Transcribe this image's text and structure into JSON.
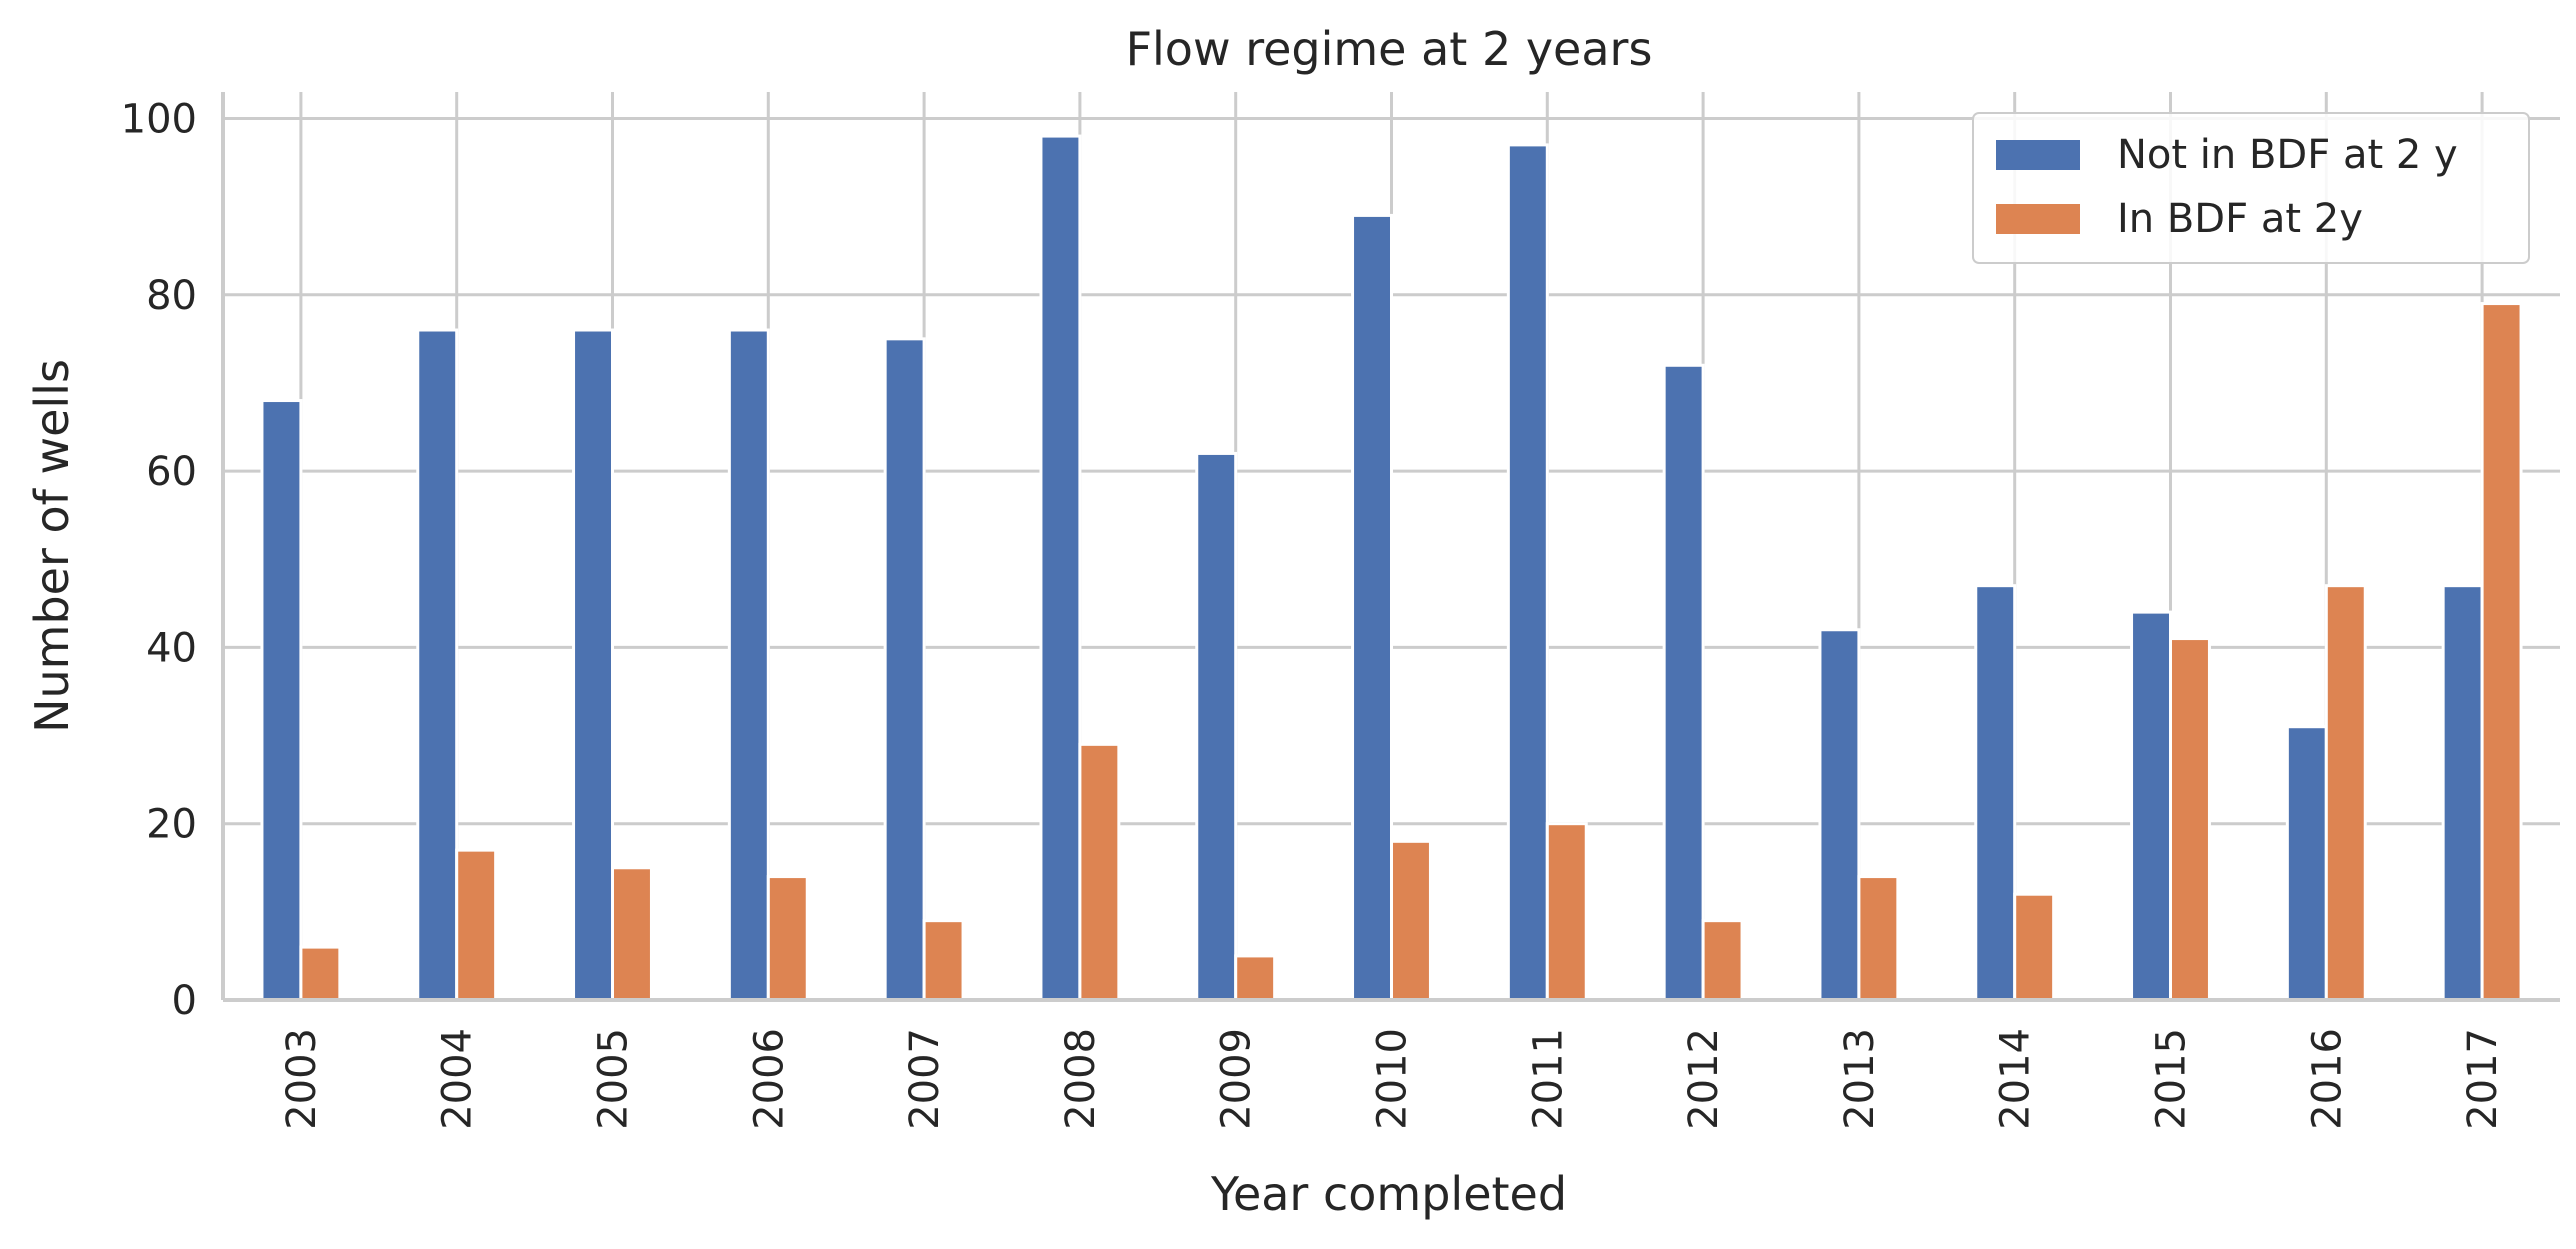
{
  "chart_data": {
    "type": "bar",
    "title": "Flow regime at 2 years",
    "xlabel": "Year completed",
    "ylabel": "Number of wells",
    "categories": [
      "2003",
      "2004",
      "2005",
      "2006",
      "2007",
      "2008",
      "2009",
      "2010",
      "2011",
      "2012",
      "2013",
      "2014",
      "2015",
      "2016",
      "2017"
    ],
    "series": [
      {
        "name": "Not in BDF at 2 y",
        "color": "#4c72b0",
        "values": [
          68,
          76,
          76,
          76,
          75,
          98,
          62,
          89,
          97,
          72,
          42,
          47,
          44,
          31,
          47
        ]
      },
      {
        "name": "In BDF at 2y",
        "color": "#dd8452",
        "values": [
          6,
          17,
          15,
          14,
          9,
          29,
          5,
          18,
          20,
          9,
          14,
          12,
          41,
          47,
          79
        ]
      }
    ],
    "ylim": [
      0,
      103
    ],
    "yticks": [
      0,
      20,
      40,
      60,
      80,
      100
    ],
    "grid": true,
    "legend_position": "top-right"
  }
}
